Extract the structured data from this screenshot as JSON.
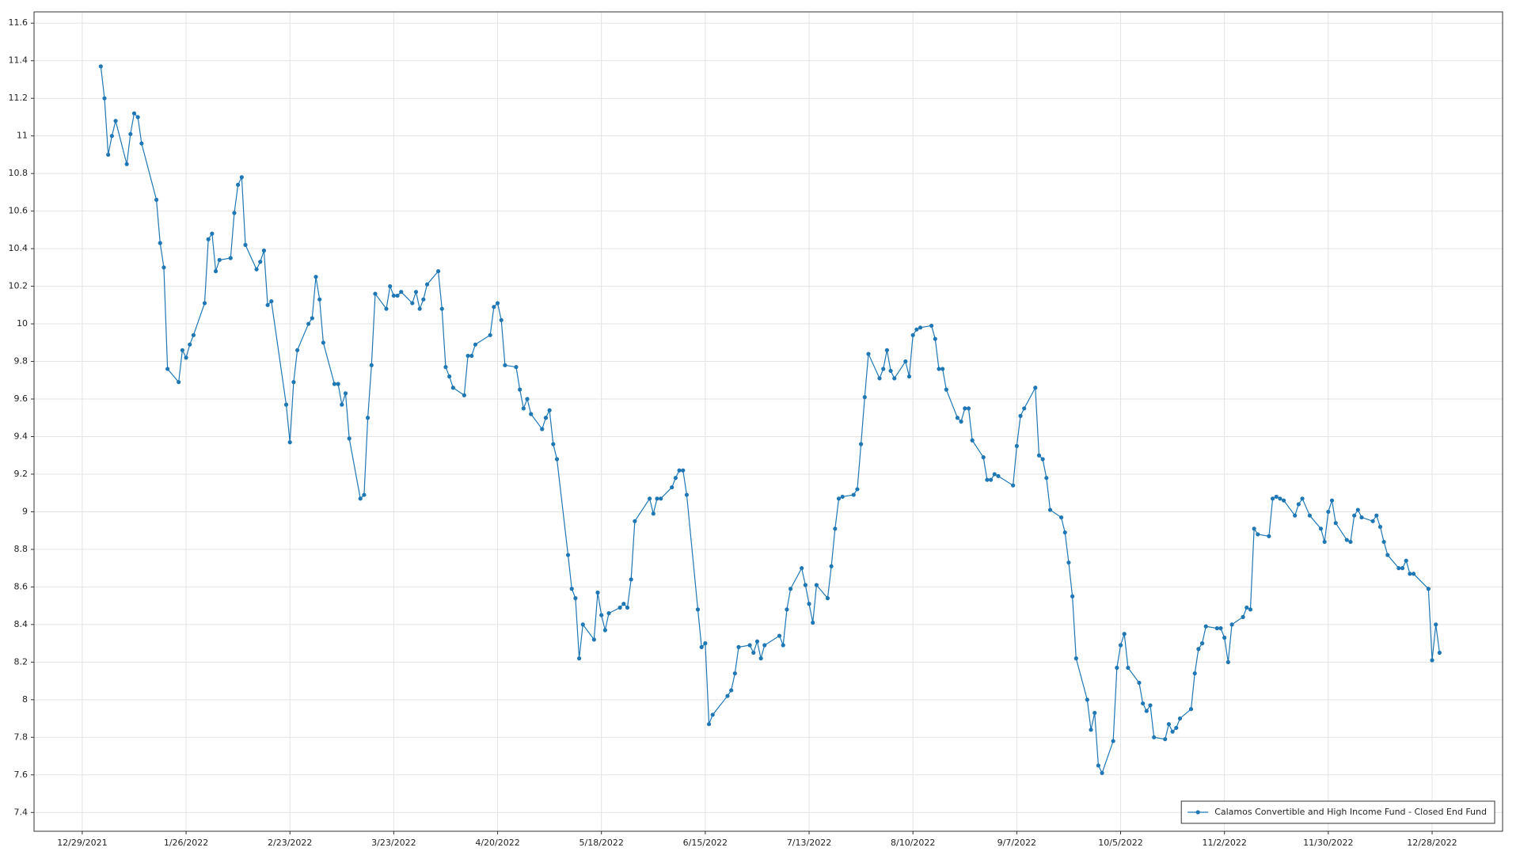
{
  "chart_data": {
    "type": "line",
    "x": [
      "1/3/2022",
      "1/4/2022",
      "1/5/2022",
      "1/6/2022",
      "1/7/2022",
      "1/10/2022",
      "1/11/2022",
      "1/12/2022",
      "1/13/2022",
      "1/14/2022",
      "1/18/2022",
      "1/19/2022",
      "1/20/2022",
      "1/21/2022",
      "1/24/2022",
      "1/25/2022",
      "1/26/2022",
      "1/27/2022",
      "1/28/2022",
      "1/31/2022",
      "2/1/2022",
      "2/2/2022",
      "2/3/2022",
      "2/4/2022",
      "2/7/2022",
      "2/8/2022",
      "2/9/2022",
      "2/10/2022",
      "2/11/2022",
      "2/14/2022",
      "2/15/2022",
      "2/16/2022",
      "2/17/2022",
      "2/18/2022",
      "2/22/2022",
      "2/23/2022",
      "2/24/2022",
      "2/25/2022",
      "2/28/2022",
      "3/1/2022",
      "3/2/2022",
      "3/3/2022",
      "3/4/2022",
      "3/7/2022",
      "3/8/2022",
      "3/9/2022",
      "3/10/2022",
      "3/11/2022",
      "3/14/2022",
      "3/15/2022",
      "3/16/2022",
      "3/17/2022",
      "3/18/2022",
      "3/21/2022",
      "3/22/2022",
      "3/23/2022",
      "3/24/2022",
      "3/25/2022",
      "3/28/2022",
      "3/29/2022",
      "3/30/2022",
      "3/31/2022",
      "4/1/2022",
      "4/4/2022",
      "4/5/2022",
      "4/6/2022",
      "4/7/2022",
      "4/8/2022",
      "4/11/2022",
      "4/12/2022",
      "4/13/2022",
      "4/14/2022",
      "4/18/2022",
      "4/19/2022",
      "4/20/2022",
      "4/21/2022",
      "4/22/2022",
      "4/25/2022",
      "4/26/2022",
      "4/27/2022",
      "4/28/2022",
      "4/29/2022",
      "5/2/2022",
      "5/3/2022",
      "5/4/2022",
      "5/5/2022",
      "5/6/2022",
      "5/9/2022",
      "5/10/2022",
      "5/11/2022",
      "5/12/2022",
      "5/13/2022",
      "5/16/2022",
      "5/17/2022",
      "5/18/2022",
      "5/19/2022",
      "5/20/2022",
      "5/23/2022",
      "5/24/2022",
      "5/25/2022",
      "5/26/2022",
      "5/27/2022",
      "5/31/2022",
      "6/1/2022",
      "6/2/2022",
      "6/3/2022",
      "6/6/2022",
      "6/7/2022",
      "6/8/2022",
      "6/9/2022",
      "6/10/2022",
      "6/13/2022",
      "6/14/2022",
      "6/15/2022",
      "6/16/2022",
      "6/17/2022",
      "6/21/2022",
      "6/22/2022",
      "6/23/2022",
      "6/24/2022",
      "6/27/2022",
      "6/28/2022",
      "6/29/2022",
      "6/30/2022",
      "7/1/2022",
      "7/5/2022",
      "7/6/2022",
      "7/7/2022",
      "7/8/2022",
      "7/11/2022",
      "7/12/2022",
      "7/13/2022",
      "7/14/2022",
      "7/15/2022",
      "7/18/2022",
      "7/19/2022",
      "7/20/2022",
      "7/21/2022",
      "7/22/2022",
      "7/25/2022",
      "7/26/2022",
      "7/27/2022",
      "7/28/2022",
      "7/29/2022",
      "8/1/2022",
      "8/2/2022",
      "8/3/2022",
      "8/4/2022",
      "8/5/2022",
      "8/8/2022",
      "8/9/2022",
      "8/10/2022",
      "8/11/2022",
      "8/12/2022",
      "8/15/2022",
      "8/16/2022",
      "8/17/2022",
      "8/18/2022",
      "8/19/2022",
      "8/22/2022",
      "8/23/2022",
      "8/24/2022",
      "8/25/2022",
      "8/26/2022",
      "8/29/2022",
      "8/30/2022",
      "8/31/2022",
      "9/1/2022",
      "9/2/2022",
      "9/6/2022",
      "9/7/2022",
      "9/8/2022",
      "9/9/2022",
      "9/12/2022",
      "9/13/2022",
      "9/14/2022",
      "9/15/2022",
      "9/16/2022",
      "9/19/2022",
      "9/20/2022",
      "9/21/2022",
      "9/22/2022",
      "9/23/2022",
      "9/26/2022",
      "9/27/2022",
      "9/28/2022",
      "9/29/2022",
      "9/30/2022",
      "10/3/2022",
      "10/4/2022",
      "10/5/2022",
      "10/6/2022",
      "10/7/2022",
      "10/10/2022",
      "10/11/2022",
      "10/12/2022",
      "10/13/2022",
      "10/14/2022",
      "10/17/2022",
      "10/18/2022",
      "10/19/2022",
      "10/20/2022",
      "10/21/2022",
      "10/24/2022",
      "10/25/2022",
      "10/26/2022",
      "10/27/2022",
      "10/28/2022",
      "10/31/2022",
      "11/1/2022",
      "11/2/2022",
      "11/3/2022",
      "11/4/2022",
      "11/7/2022",
      "11/8/2022",
      "11/9/2022",
      "11/10/2022",
      "11/11/2022",
      "11/14/2022",
      "11/15/2022",
      "11/16/2022",
      "11/17/2022",
      "11/18/2022",
      "11/21/2022",
      "11/22/2022",
      "11/23/2022",
      "11/25/2022",
      "11/28/2022",
      "11/29/2022",
      "11/30/2022",
      "12/1/2022",
      "12/2/2022",
      "12/5/2022",
      "12/6/2022",
      "12/7/2022",
      "12/8/2022",
      "12/9/2022",
      "12/12/2022",
      "12/13/2022",
      "12/14/2022",
      "12/15/2022",
      "12/16/2022",
      "12/19/2022",
      "12/20/2022",
      "12/21/2022",
      "12/22/2022",
      "12/23/2022",
      "12/27/2022",
      "12/28/2022",
      "12/29/2022",
      "12/30/2022"
    ],
    "series": [
      {
        "name": "Calamos Convertible and High Income Fund - Closed End Fund",
        "color": "#1f77b4",
        "values": [
          11.37,
          11.2,
          10.9,
          11.0,
          11.08,
          10.85,
          11.01,
          11.12,
          11.1,
          10.96,
          10.66,
          10.43,
          10.3,
          9.76,
          9.69,
          9.86,
          9.82,
          9.89,
          9.94,
          10.11,
          10.45,
          10.48,
          10.28,
          10.34,
          10.35,
          10.59,
          10.74,
          10.78,
          10.42,
          10.29,
          10.33,
          10.39,
          10.1,
          10.12,
          9.57,
          9.37,
          9.69,
          9.86,
          10.0,
          10.03,
          10.25,
          10.13,
          9.9,
          9.68,
          9.68,
          9.57,
          9.63,
          9.39,
          9.07,
          9.09,
          9.5,
          9.78,
          10.16,
          10.08,
          10.2,
          10.15,
          10.15,
          10.17,
          10.11,
          10.17,
          10.08,
          10.13,
          10.21,
          10.28,
          10.08,
          9.77,
          9.72,
          9.66,
          9.62,
          9.83,
          9.83,
          9.89,
          9.94,
          10.09,
          10.11,
          10.02,
          9.78,
          9.77,
          9.65,
          9.55,
          9.6,
          9.52,
          9.44,
          9.5,
          9.54,
          9.36,
          9.28,
          8.77,
          8.59,
          8.54,
          8.22,
          8.4,
          8.32,
          8.57,
          8.45,
          8.37,
          8.46,
          8.49,
          8.51,
          8.49,
          8.64,
          8.95,
          9.07,
          8.99,
          9.07,
          9.07,
          9.13,
          9.18,
          9.22,
          9.22,
          9.09,
          8.48,
          8.28,
          8.3,
          7.87,
          7.92,
          8.02,
          8.05,
          8.14,
          8.28,
          8.29,
          8.25,
          8.31,
          8.22,
          8.29,
          8.34,
          8.29,
          8.48,
          8.59,
          8.7,
          8.61,
          8.51,
          8.41,
          8.61,
          8.54,
          8.71,
          8.91,
          9.07,
          9.08,
          9.09,
          9.12,
          9.36,
          9.61,
          9.84,
          9.71,
          9.76,
          9.86,
          9.75,
          9.71,
          9.8,
          9.72,
          9.94,
          9.97,
          9.98,
          9.99,
          9.92,
          9.76,
          9.76,
          9.65,
          9.5,
          9.48,
          9.55,
          9.55,
          9.38,
          9.29,
          9.17,
          9.17,
          9.2,
          9.19,
          9.14,
          9.35,
          9.51,
          9.55,
          9.66,
          9.3,
          9.28,
          9.18,
          9.01,
          8.97,
          8.89,
          8.73,
          8.55,
          8.22,
          8.0,
          7.84,
          7.93,
          7.65,
          7.61,
          7.78,
          8.17,
          8.29,
          8.35,
          8.17,
          8.09,
          7.98,
          7.94,
          7.97,
          7.8,
          7.79,
          7.87,
          7.83,
          7.85,
          7.9,
          7.95,
          8.14,
          8.27,
          8.3,
          8.39,
          8.38,
          8.38,
          8.33,
          8.2,
          8.4,
          8.44,
          8.49,
          8.48,
          8.91,
          8.88,
          8.87,
          9.07,
          9.08,
          9.07,
          9.06,
          8.98,
          9.04,
          9.07,
          8.98,
          8.91,
          8.84,
          9.0,
          9.06,
          8.94,
          8.85,
          8.84,
          8.98,
          9.01,
          8.97,
          8.95,
          8.98,
          8.92,
          8.84,
          8.77,
          8.7,
          8.7,
          8.74,
          8.67,
          8.67,
          8.59,
          8.21,
          8.4,
          8.25
        ]
      }
    ],
    "xlim": [
      "12/16/2021",
      "1/16/2023"
    ],
    "xticks": [
      "12/29/2021",
      "1/26/2022",
      "2/23/2022",
      "3/23/2022",
      "4/20/2022",
      "5/18/2022",
      "6/15/2022",
      "7/13/2022",
      "8/10/2022",
      "9/7/2022",
      "10/5/2022",
      "11/2/2022",
      "11/30/2022",
      "12/28/2022"
    ],
    "ylim": [
      7.3,
      11.66
    ],
    "yticks": [
      7.4,
      7.6,
      7.8,
      8,
      8.2,
      8.4,
      8.6,
      8.8,
      9,
      9.2,
      9.4,
      9.6,
      9.8,
      10,
      10.2,
      10.4,
      10.6,
      10.8,
      11,
      11.2,
      11.4,
      11.6
    ],
    "grid": true,
    "legend": "lower right"
  }
}
